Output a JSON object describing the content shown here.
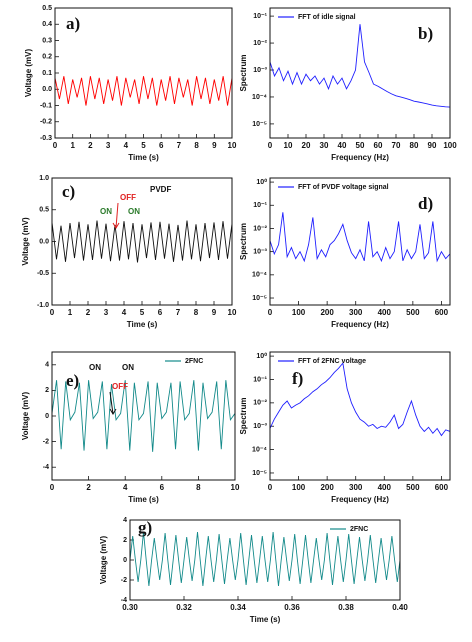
{
  "chart_data": [
    {
      "type": "line",
      "label": "a)",
      "xlabel": "Time (s)",
      "ylabel": "Voltage (mV)",
      "xlim": [
        0,
        10
      ],
      "ylim": [
        -0.3,
        0.5
      ],
      "xticks": [
        0,
        1,
        2,
        3,
        4,
        5,
        6,
        7,
        8,
        9,
        10
      ],
      "yticks": [
        -0.3,
        -0.2,
        -0.1,
        {
          "value": 0,
          "label": "0.0"
        },
        0.1,
        0.2,
        0.3,
        0.4,
        0.5
      ],
      "x": [
        0,
        0.25,
        0.5,
        0.75,
        1,
        1.25,
        1.5,
        1.75,
        2,
        2.25,
        2.5,
        2.75,
        3,
        3.25,
        3.5,
        3.75,
        4,
        4.25,
        4.5,
        4.75,
        5,
        5.25,
        5.5,
        5.75,
        6,
        6.25,
        6.5,
        6.75,
        7,
        7.25,
        7.5,
        7.75,
        8,
        8.25,
        8.5,
        8.75,
        9,
        9.25,
        9.5,
        9.75,
        10
      ],
      "series": [
        {
          "color": "#ff0000",
          "values": [
            0.07,
            -0.06,
            0.08,
            -0.09,
            0.06,
            -0.05,
            0.07,
            -0.1,
            0.08,
            -0.06,
            0.07,
            -0.09,
            0.06,
            -0.07,
            0.08,
            -0.1,
            0.07,
            -0.05,
            0.06,
            -0.09,
            0.08,
            -0.06,
            0.07,
            -0.1,
            0.06,
            -0.07,
            0.08,
            -0.09,
            0.07,
            -0.05,
            0.06,
            -0.1,
            0.08,
            -0.06,
            0.07,
            -0.09,
            0.06,
            -0.07,
            0.08,
            -0.1,
            0.07
          ]
        }
      ]
    },
    {
      "type": "line",
      "label": "b)",
      "xlabel": "Frequency (Hz)",
      "ylabel": "Spectrum",
      "log": true,
      "xlim": [
        0,
        100
      ],
      "ylim": [
        3e-06,
        0.2
      ],
      "xticks": [
        0,
        10,
        20,
        30,
        40,
        50,
        60,
        70,
        80,
        90,
        100
      ],
      "yticks": [
        {
          "value": 0.1,
          "label": "10⁻¹"
        },
        {
          "value": 0.01,
          "label": "10⁻²"
        },
        {
          "value": 0.001,
          "label": "10⁻³"
        },
        {
          "value": 0.0001,
          "label": "10⁻⁴"
        },
        {
          "value": 1e-05,
          "label": "10⁻⁵"
        }
      ],
      "x": [
        0,
        2.5,
        5,
        7.5,
        10,
        12.5,
        15,
        17.5,
        20,
        22.5,
        25,
        27.5,
        30,
        32.5,
        35,
        37.5,
        40,
        42.5,
        45,
        47.5,
        50,
        52.5,
        55,
        57.5,
        60,
        62.5,
        65,
        67.5,
        70,
        72.5,
        75,
        77.5,
        80,
        82.5,
        85,
        87.5,
        90,
        92.5,
        95,
        97.5,
        100
      ],
      "series": [
        {
          "name": "FFT of  idle signal",
          "color": "#1f1fff",
          "values": [
            0.002,
            0.0006,
            0.0012,
            0.0004,
            0.0009,
            0.0003,
            0.0008,
            0.0003,
            0.0007,
            0.0004,
            0.0006,
            0.0003,
            0.0005,
            0.0002,
            0.0006,
            0.0003,
            0.0005,
            0.0002,
            0.0004,
            0.001,
            0.05,
            0.002,
            0.0008,
            0.0003,
            0.00025,
            0.0002,
            0.00016,
            0.00013,
            0.00011,
            0.0001,
            9e-05,
            8e-05,
            7e-05,
            6.5e-05,
            6e-05,
            5.5e-05,
            5e-05,
            4.7e-05,
            4.5e-05,
            4.3e-05,
            4.2e-05
          ]
        }
      ]
    },
    {
      "type": "line",
      "label": "c)",
      "xlabel": "Time (s)",
      "ylabel": "Voltage (mV)",
      "annotations": [
        "PVDF",
        "OFF",
        "ON",
        "ON"
      ],
      "xlim": [
        0,
        10
      ],
      "ylim": [
        -1,
        1
      ],
      "xticks": [
        0,
        1,
        2,
        3,
        4,
        5,
        6,
        7,
        8,
        9,
        10
      ],
      "yticks": [
        {
          "value": -1,
          "label": "-1.0"
        },
        -0.5,
        {
          "value": 0,
          "label": "0.0"
        },
        0.5,
        {
          "value": 1,
          "label": "1.0"
        }
      ],
      "x": [
        0,
        0.25,
        0.5,
        0.75,
        1,
        1.25,
        1.5,
        1.75,
        2,
        2.25,
        2.5,
        2.75,
        3,
        3.25,
        3.5,
        3.75,
        4,
        4.25,
        4.5,
        4.75,
        5,
        5.25,
        5.5,
        5.75,
        6,
        6.25,
        6.5,
        6.75,
        7,
        7.25,
        7.5,
        7.75,
        8,
        8.25,
        8.5,
        8.75,
        9,
        9.25,
        9.5,
        9.75,
        10
      ],
      "series": [
        {
          "color": "#111111",
          "values": [
            0.3,
            -0.28,
            0.25,
            -0.32,
            0.29,
            -0.26,
            0.31,
            -0.3,
            0.27,
            -0.29,
            0.33,
            -0.27,
            0.28,
            -0.31,
            0.26,
            -0.3,
            0.32,
            -0.28,
            0.29,
            -0.33,
            0.27,
            -0.26,
            0.3,
            -0.29,
            0.31,
            -0.27,
            0.28,
            -0.32,
            0.26,
            -0.3,
            0.33,
            -0.28,
            0.27,
            -0.31,
            0.29,
            -0.26,
            0.3,
            -0.29,
            0.32,
            -0.27,
            0.28
          ]
        }
      ]
    },
    {
      "type": "line",
      "label": "d)",
      "xlabel": "Frequency (Hz)",
      "ylabel": "Spectrum",
      "log": true,
      "xlim": [
        0,
        630
      ],
      "ylim": [
        5e-06,
        1.5
      ],
      "xticks": [
        0,
        100,
        200,
        300,
        400,
        500,
        600
      ],
      "yticks": [
        {
          "value": 1,
          "label": "10⁰"
        },
        {
          "value": 0.1,
          "label": "10⁻¹"
        },
        {
          "value": 0.01,
          "label": "10⁻²"
        },
        {
          "value": 0.001,
          "label": "10⁻³"
        },
        {
          "value": 0.0001,
          "label": "10⁻⁴"
        },
        {
          "value": 1e-05,
          "label": "10⁻⁵"
        }
      ],
      "x": [
        0,
        15,
        30,
        45,
        60,
        75,
        90,
        105,
        120,
        135,
        150,
        165,
        180,
        195,
        210,
        225,
        240,
        255,
        270,
        285,
        300,
        315,
        330,
        345,
        360,
        375,
        390,
        405,
        420,
        435,
        450,
        465,
        480,
        495,
        510,
        525,
        540,
        555,
        570,
        585,
        600,
        615,
        630
      ],
      "series": [
        {
          "name": "FFT of PVDF voltage signal",
          "color": "#1f1fff",
          "values": [
            0.003,
            0.0008,
            0.002,
            0.05,
            0.0006,
            0.0015,
            0.0005,
            0.001,
            0.0004,
            0.002,
            0.03,
            0.0005,
            0.0012,
            0.0006,
            0.002,
            0.003,
            0.006,
            0.015,
            0.003,
            0.0009,
            0.0005,
            0.0012,
            0.0004,
            0.02,
            0.0006,
            0.001,
            0.0004,
            0.0015,
            0.0005,
            0.001,
            0.02,
            0.0004,
            0.0012,
            0.0005,
            0.001,
            0.015,
            0.0005,
            0.0009,
            0.02,
            0.0004,
            0.001,
            0.0005,
            0.0008
          ]
        }
      ]
    },
    {
      "type": "line",
      "label": "e)",
      "xlabel": "Time (s)",
      "ylabel": "Voltage (mV)",
      "annotations": [
        "ON",
        "OFF",
        "ON"
      ],
      "xlim": [
        0,
        10
      ],
      "ylim": [
        -5,
        5
      ],
      "xticks": [
        0,
        2,
        4,
        6,
        8,
        10
      ],
      "yticks": [
        -4,
        -2,
        0,
        2,
        4
      ],
      "x": [
        0,
        0.25,
        0.5,
        0.75,
        1,
        1.25,
        1.5,
        1.75,
        2,
        2.25,
        2.5,
        2.75,
        3,
        3.25,
        3.5,
        3.75,
        4,
        4.25,
        4.5,
        4.75,
        5,
        5.25,
        5.5,
        5.75,
        6,
        6.25,
        6.5,
        6.75,
        7,
        7.25,
        7.5,
        7.75,
        8,
        8.25,
        8.5,
        8.75,
        9,
        9.25,
        9.5,
        9.75,
        10
      ],
      "series": [
        {
          "name": "2FNC",
          "color": "#138a8a",
          "values": [
            0.2,
            2.8,
            -2.6,
            2.7,
            -0.3,
            0.3,
            2.6,
            -2.7,
            2.8,
            -0.2,
            0.3,
            2.7,
            -2.6,
            2.5,
            -0.3,
            0.2,
            2.8,
            -2.7,
            2.6,
            -0.3,
            0.2,
            2.7,
            -2.8,
            2.6,
            -0.2,
            0.3,
            2.6,
            -2.6,
            2.7,
            -0.3,
            0.2,
            2.8,
            -2.7,
            2.6,
            -0.2,
            0.3,
            2.7,
            -2.6,
            2.8,
            -0.3,
            0.2
          ]
        }
      ]
    },
    {
      "type": "line",
      "label": "f)",
      "xlabel": "Frequency (Hz)",
      "ylabel": "Spectrum",
      "log": true,
      "xlim": [
        0,
        630
      ],
      "ylim": [
        5e-06,
        1.5
      ],
      "xticks": [
        0,
        100,
        200,
        300,
        400,
        500,
        600
      ],
      "yticks": [
        {
          "value": 1,
          "label": "10⁰"
        },
        {
          "value": 0.1,
          "label": "10⁻¹"
        },
        {
          "value": 0.01,
          "label": "10⁻²"
        },
        {
          "value": 0.001,
          "label": "10⁻³"
        },
        {
          "value": 0.0001,
          "label": "10⁻⁴"
        },
        {
          "value": 1e-05,
          "label": "10⁻⁵"
        }
      ],
      "x": [
        0,
        15,
        30,
        45,
        60,
        75,
        90,
        105,
        120,
        135,
        150,
        165,
        180,
        195,
        210,
        225,
        240,
        255,
        270,
        285,
        300,
        315,
        330,
        345,
        360,
        375,
        390,
        405,
        420,
        435,
        450,
        465,
        480,
        495,
        510,
        525,
        540,
        555,
        570,
        585,
        600,
        615,
        630
      ],
      "series": [
        {
          "name": "FFT of 2FNC voltage",
          "color": "#1f1fff",
          "values": [
            0.0008,
            0.002,
            0.004,
            0.008,
            0.012,
            0.006,
            0.008,
            0.01,
            0.015,
            0.02,
            0.03,
            0.04,
            0.06,
            0.08,
            0.12,
            0.2,
            0.3,
            0.5,
            0.04,
            0.01,
            0.004,
            0.002,
            0.0015,
            0.001,
            0.0012,
            0.0008,
            0.001,
            0.0009,
            0.0015,
            0.003,
            0.0008,
            0.0012,
            0.004,
            0.012,
            0.003,
            0.001,
            0.0006,
            0.0009,
            0.0005,
            0.0008,
            0.0004,
            0.0007,
            0.0006
          ]
        }
      ]
    },
    {
      "type": "line",
      "label": "g)",
      "xlabel": "Time (s)",
      "ylabel": "Voltage (mV)",
      "xlim": [
        0.3,
        0.4
      ],
      "ylim": [
        -4,
        4
      ],
      "xticks": [
        {
          "value": 0.3,
          "label": "0.30"
        },
        0.32,
        0.34,
        0.36,
        0.38,
        {
          "value": 0.4,
          "label": "0.40"
        }
      ],
      "yticks": [
        -4,
        -2,
        0,
        2,
        4
      ],
      "x": [
        0.3,
        0.301,
        0.302,
        0.303,
        0.304,
        0.305,
        0.306,
        0.307,
        0.308,
        0.309,
        0.31,
        0.311,
        0.312,
        0.313,
        0.314,
        0.315,
        0.316,
        0.317,
        0.318,
        0.319,
        0.32,
        0.321,
        0.322,
        0.323,
        0.324,
        0.325,
        0.326,
        0.327,
        0.328,
        0.329,
        0.33,
        0.331,
        0.332,
        0.333,
        0.334,
        0.335,
        0.336,
        0.337,
        0.338,
        0.339,
        0.34,
        0.341,
        0.342,
        0.343,
        0.344,
        0.345,
        0.346,
        0.347,
        0.348,
        0.349,
        0.35,
        0.351,
        0.352,
        0.353,
        0.354,
        0.355,
        0.356,
        0.357,
        0.358,
        0.359,
        0.36,
        0.361,
        0.362,
        0.363,
        0.364,
        0.365,
        0.366,
        0.367,
        0.368,
        0.369,
        0.37,
        0.371,
        0.372,
        0.373,
        0.374,
        0.375,
        0.376,
        0.377,
        0.378,
        0.379,
        0.38,
        0.381,
        0.382,
        0.383,
        0.384,
        0.385,
        0.386,
        0.387,
        0.388,
        0.389,
        0.39,
        0.391,
        0.392,
        0.393,
        0.394,
        0.395,
        0.396,
        0.397,
        0.398,
        0.399,
        0.4
      ],
      "series": [
        {
          "name": "2FNC",
          "color": "#138a8a",
          "values": [
            0,
            2.4,
            0,
            -2.2,
            0,
            2.8,
            0,
            -2.6,
            0,
            2.2,
            0,
            -2,
            0,
            2.7,
            0,
            -2.5,
            0,
            2.5,
            0,
            -2.3,
            0,
            2.3,
            0,
            -2.1,
            0,
            2.8,
            0,
            -2.6,
            0,
            2.4,
            0,
            -2.2,
            0,
            2.6,
            0,
            -2.4,
            0,
            2.2,
            0,
            -2,
            0,
            2.7,
            0,
            -2.5,
            0,
            2.5,
            0,
            -2.3,
            0,
            2.4,
            0,
            -2.2,
            0,
            2.8,
            0,
            -2.6,
            0,
            2.3,
            0,
            -2.1,
            0,
            2.6,
            0,
            -2.4,
            0,
            2.5,
            0,
            -2.3,
            0,
            2.2,
            0,
            -2,
            0,
            2.7,
            0,
            -2.5,
            0,
            2.4,
            0,
            -2.2,
            0,
            2.6,
            0,
            -2.4,
            0,
            2.3,
            0,
            -2.1,
            0,
            2.5,
            0,
            -2.3,
            0,
            2.2,
            0,
            -2,
            0,
            2.4,
            0,
            -2.2,
            0
          ]
        }
      ]
    }
  ]
}
